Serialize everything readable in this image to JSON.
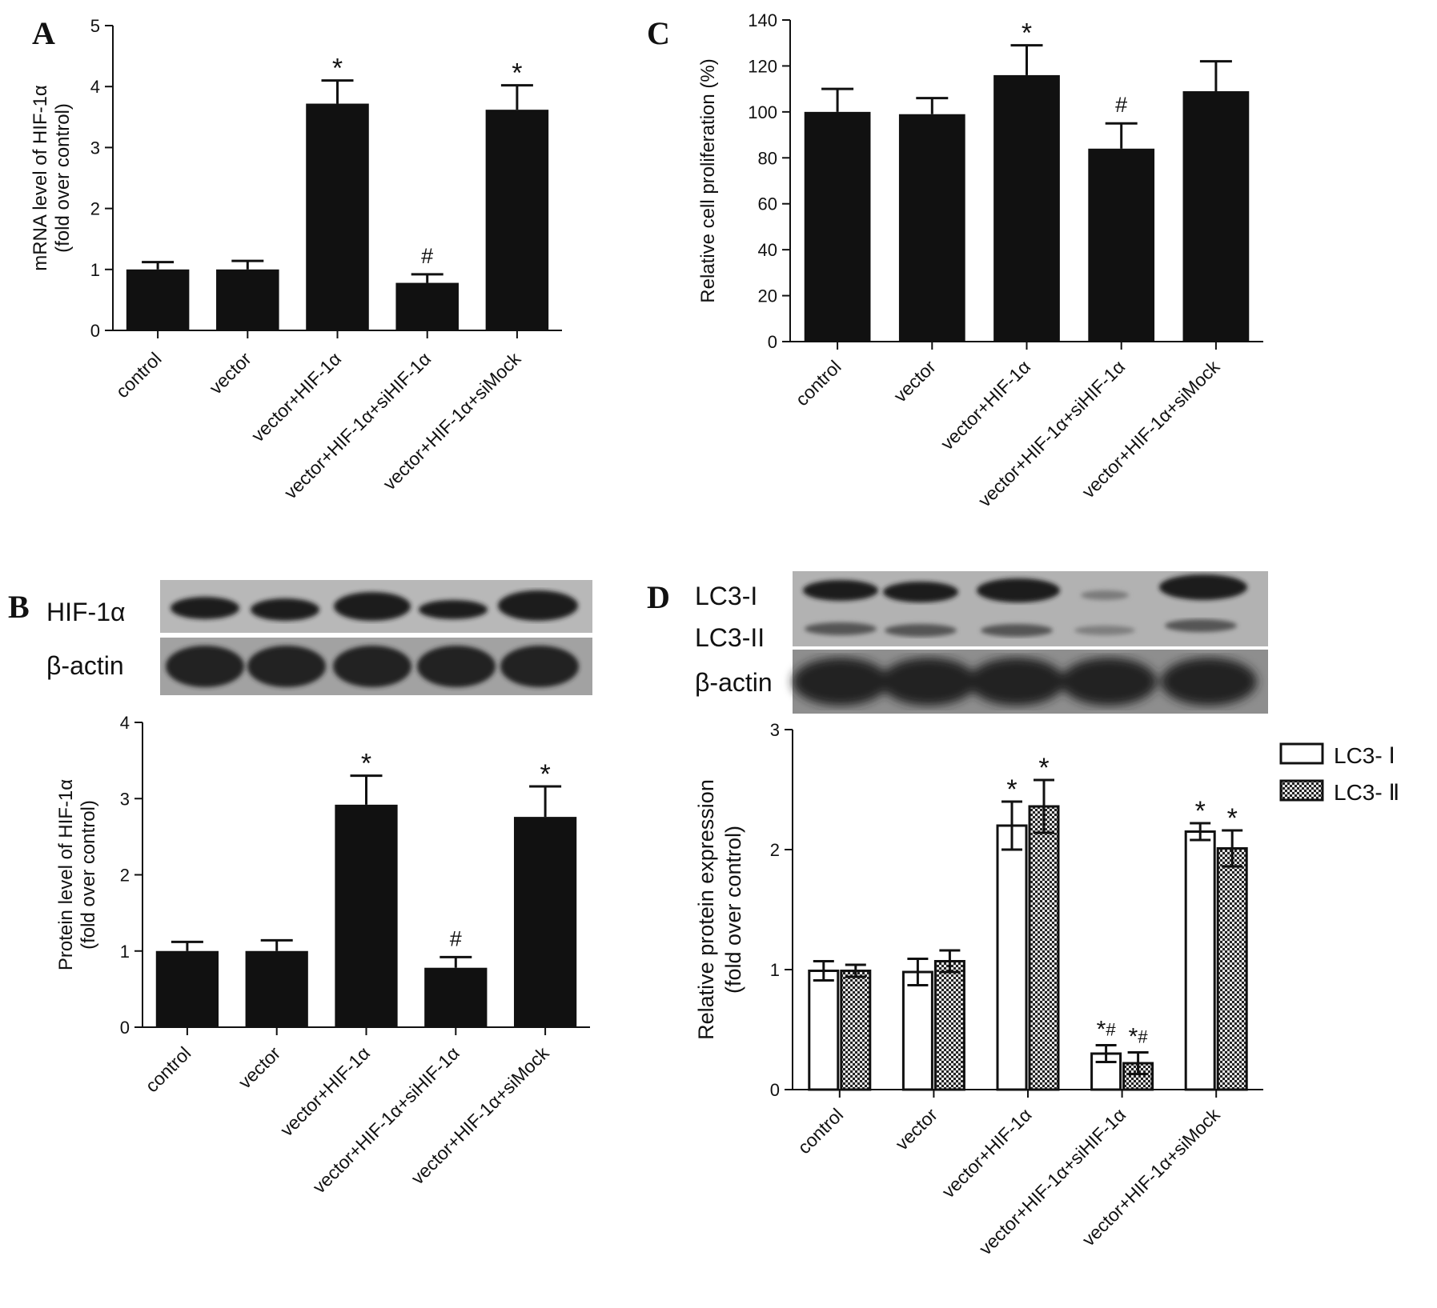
{
  "chart_data": [
    {
      "panel": "A",
      "type": "bar",
      "categories": [
        "control",
        "vector",
        "vector+HIF-1α",
        "vector+HIF-1α+siHIF-1α",
        "vector+HIF-1α+siMock"
      ],
      "values": [
        1.0,
        1.0,
        3.72,
        0.78,
        3.62
      ],
      "errors": [
        0.12,
        0.14,
        0.38,
        0.14,
        0.4
      ],
      "significance": [
        "",
        "",
        "*",
        "#",
        "*"
      ],
      "ylabel": [
        "mRNA level of HIF-1α",
        "(fold over control)"
      ],
      "ylim": [
        0,
        5
      ],
      "yticks": [
        0,
        1,
        2,
        3,
        4,
        5
      ],
      "colors": [
        "#111111"
      ]
    },
    {
      "panel": "B",
      "type": "bar",
      "categories": [
        "control",
        "vector",
        "vector+HIF-1α",
        "vector+HIF-1α+siHIF-1α",
        "vector+HIF-1α+siMock"
      ],
      "values": [
        1.0,
        1.0,
        2.92,
        0.78,
        2.76
      ],
      "errors": [
        0.12,
        0.14,
        0.38,
        0.14,
        0.4
      ],
      "significance": [
        "",
        "",
        "*",
        "#",
        "*"
      ],
      "ylabel": [
        "Protein level of HIF-1α",
        "(fold over control)"
      ],
      "ylim": [
        0,
        4
      ],
      "yticks": [
        0,
        1,
        2,
        3,
        4
      ],
      "colors": [
        "#111111"
      ]
    },
    {
      "panel": "C",
      "type": "bar",
      "categories": [
        "control",
        "vector",
        "vector+HIF-1α",
        "vector+HIF-1α+siHIF-1α",
        "vector+HIF-1α+siMock"
      ],
      "values": [
        100,
        99,
        116,
        84,
        109
      ],
      "errors": [
        10,
        7,
        13,
        11,
        13
      ],
      "significance": [
        "",
        "",
        "*",
        "#",
        ""
      ],
      "ylabel": [
        "Relative cell proliferation (%)"
      ],
      "ylim": [
        0,
        140
      ],
      "yticks": [
        0,
        20,
        40,
        60,
        80,
        100,
        120,
        140
      ],
      "colors": [
        "#111111"
      ]
    },
    {
      "panel": "D",
      "type": "bar",
      "categories": [
        "control",
        "vector",
        "vector+HIF-1α",
        "vector+HIF-1α+siHIF-1α",
        "vector+HIF-1α+siMock"
      ],
      "series": [
        {
          "name": "LC3- Ⅰ",
          "values": [
            0.99,
            0.98,
            2.2,
            0.3,
            2.15
          ],
          "errors": [
            0.08,
            0.11,
            0.2,
            0.07,
            0.07
          ],
          "significance": [
            "",
            "",
            "*",
            "*#",
            "*"
          ]
        },
        {
          "name": "LC3- Ⅱ",
          "values": [
            0.99,
            1.07,
            2.36,
            0.22,
            2.01
          ],
          "errors": [
            0.05,
            0.09,
            0.22,
            0.09,
            0.15
          ],
          "significance": [
            "",
            "",
            "*",
            "*#",
            "*"
          ]
        }
      ],
      "ylabel": [
        "Relative protein expression",
        "(fold over control)"
      ],
      "ylim": [
        0,
        3
      ],
      "yticks": [
        0,
        1,
        2,
        3
      ],
      "legend_position": "top-right",
      "colors": [
        "#ffffff",
        "#555555"
      ]
    }
  ],
  "panel_letters": {
    "a": "A",
    "b": "B",
    "c": "C",
    "d": "D"
  },
  "blots": {
    "b": {
      "band1": "HIF-1α",
      "band2": "β-actin"
    },
    "d": {
      "band1": "LC3-I",
      "band2": "LC3-II",
      "band3": "β-actin"
    }
  }
}
